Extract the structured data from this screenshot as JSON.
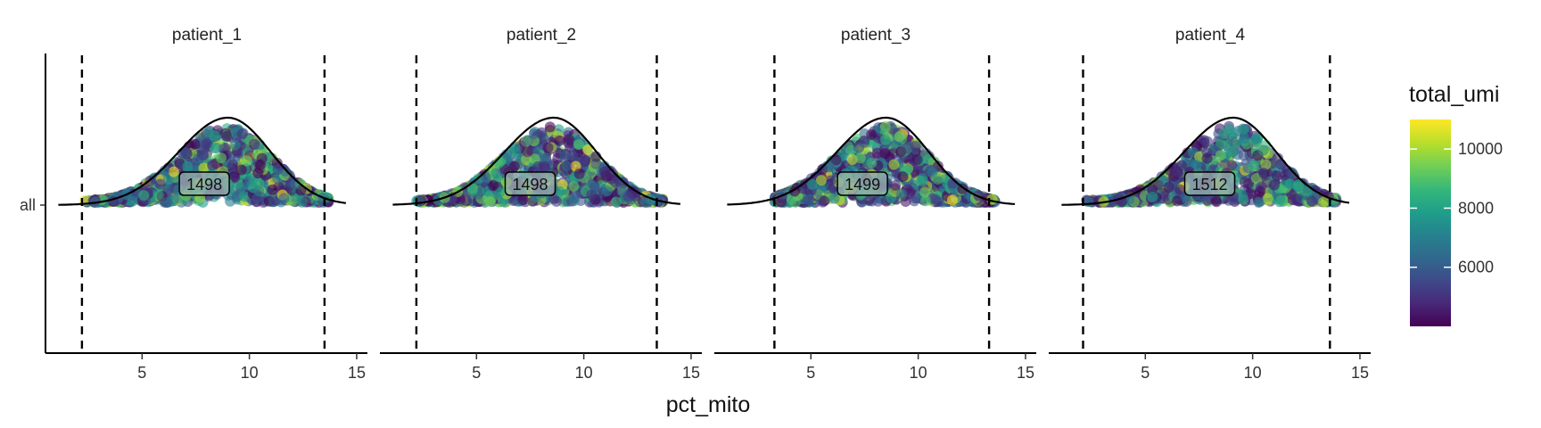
{
  "chart_data": {
    "type": "scatter",
    "subtype": "ridgeline-density-with-jittered-points (faceted)",
    "x_label": "pct_mito",
    "x_ticks": [
      5,
      10,
      15
    ],
    "x_range": [
      0.5,
      15.5
    ],
    "y_categories": [
      "all"
    ],
    "color_variable": "total_umi",
    "colorscale": "viridis",
    "color_range": [
      4000,
      11000
    ],
    "colorbar_ticks": [
      6000,
      8000,
      10000
    ],
    "colorbar_tick_labels": [
      "6000",
      "8000",
      "10000"
    ],
    "grid": false,
    "legend_position": "right",
    "facets": [
      {
        "name": "patient_1",
        "count": "1498",
        "vlines": [
          2.2,
          13.5
        ],
        "peak": 9.0,
        "x_min": 2.3,
        "x_max": 13.7
      },
      {
        "name": "patient_2",
        "count": "1498",
        "vlines": [
          2.2,
          13.4
        ],
        "peak": 8.6,
        "x_min": 2.2,
        "x_max": 13.7
      },
      {
        "name": "patient_3",
        "count": "1499",
        "vlines": [
          3.3,
          13.3
        ],
        "peak": 8.5,
        "x_min": 3.3,
        "x_max": 13.6
      },
      {
        "name": "patient_4",
        "count": "1512",
        "vlines": [
          2.1,
          13.6
        ],
        "peak": 9.1,
        "x_min": 2.2,
        "x_max": 13.9
      }
    ]
  },
  "labels": {
    "x_axis_title": "pct_mito",
    "y_category": "all",
    "legend_title": "total_umi"
  },
  "colors": {
    "density_line": "#000000",
    "vline": "#000000",
    "label_fill": "#9bb3b0",
    "viridis": [
      "#440154",
      "#482878",
      "#3e4a89",
      "#31688e",
      "#26828e",
      "#1f9e89",
      "#35b779",
      "#6ece58",
      "#b5de2b",
      "#fde725"
    ]
  }
}
